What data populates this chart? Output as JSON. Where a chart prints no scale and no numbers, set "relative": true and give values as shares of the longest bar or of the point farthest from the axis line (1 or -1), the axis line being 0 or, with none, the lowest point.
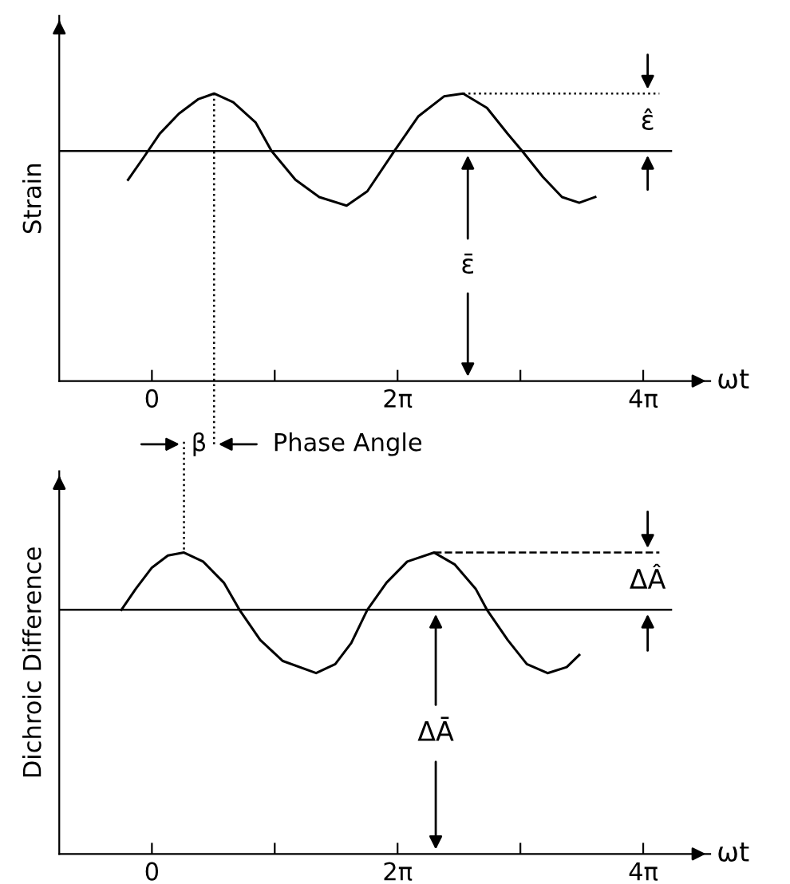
{
  "chart_data": [
    {
      "type": "line",
      "relative": true,
      "ylabel": "Strain",
      "xlabel": "ωt",
      "xlim": [
        -2.37,
        14.28
      ],
      "xticks": [
        0,
        {
          "value": 3.1416,
          "label": null
        },
        {
          "value": 6.2832,
          "label": "2π"
        },
        {
          "value": 9.4248,
          "label": null
        },
        {
          "value": 12.5664,
          "label": "4π"
        }
      ],
      "series": [
        {
          "color": "#000000",
          "x": [
            -0.61,
            -0.2,
            0.2,
            0.69,
            1.18,
            1.59,
            2.08,
            2.65,
            3.06,
            3.67,
            4.28,
            4.98,
            5.51,
            6.2,
            6.81,
            7.47,
            7.96,
            8.57,
            9.1,
            9.47,
            10.0,
            10.49,
            10.93,
            11.34
          ],
          "values": [
            0.7,
            0.78,
            0.86,
            0.93,
            0.98,
            1.0,
            0.97,
            0.9,
            0.8,
            0.7,
            0.64,
            0.61,
            0.66,
            0.8,
            0.92,
            0.99,
            1.0,
            0.95,
            0.86,
            0.8,
            0.71,
            0.64,
            0.62,
            0.64
          ]
        }
      ],
      "ref_lines": [
        {
          "axis": "y",
          "value": 0.8,
          "line_style": "solid"
        },
        {
          "axis": "y",
          "value": 1.0,
          "line_style": "dotted"
        },
        {
          "axis": "x",
          "value": 1.59,
          "line_style": "dotted"
        }
      ],
      "annotations": [
        "ε̂",
        {
          "text": "ε̄",
          "x": 8.08,
          "y": 0.4
        },
        "β",
        "Phase Angle"
      ]
    },
    {
      "type": "line",
      "relative": true,
      "ylabel": "Dichroic Difference",
      "xlabel": "ωt",
      "xlim": [
        -2.37,
        14.28
      ],
      "xticks": [
        0,
        {
          "value": 3.1416,
          "label": null
        },
        {
          "value": 6.2832,
          "label": "2π"
        },
        {
          "value": 9.4248,
          "label": null
        },
        {
          "value": 12.5664,
          "label": "4π"
        }
      ],
      "series": [
        {
          "color": "#000000",
          "x": [
            -0.78,
            -0.41,
            0,
            0.41,
            0.82,
            1.31,
            1.84,
            2.24,
            2.77,
            3.35,
            4.2,
            4.69,
            5.1,
            5.51,
            6.0,
            6.53,
            7.22,
            7.75,
            8.28,
            8.57,
            9.1,
            9.59,
            10.12,
            10.61,
            10.93
          ],
          "values": [
            0.81,
            0.88,
            0.95,
            0.99,
            1.0,
            0.97,
            0.9,
            0.81,
            0.71,
            0.64,
            0.6,
            0.63,
            0.7,
            0.81,
            0.9,
            0.97,
            1.0,
            0.96,
            0.88,
            0.81,
            0.71,
            0.63,
            0.6,
            0.62,
            0.66
          ]
        }
      ],
      "ref_lines": [
        {
          "axis": "y",
          "value": 0.81,
          "line_style": "solid"
        },
        {
          "axis": "y",
          "value": 1.0,
          "line_style": "dashed"
        }
      ],
      "annotations": [
        "ΔÂ",
        {
          "text": "ΔĀ",
          "x": 7.26,
          "y": 0.4
        }
      ]
    }
  ]
}
